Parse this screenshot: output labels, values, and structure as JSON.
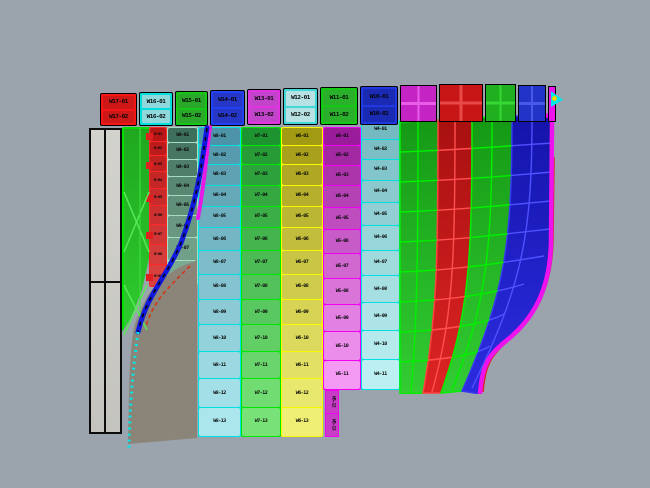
{
  "scene": {
    "type": "cad-viewport-3d-paneling-model",
    "description": "Shaded 3D viewport of a curved paneled facade surface with labeled panel strips, door frame outline, guide curves and shadow surface"
  },
  "colors": {
    "background": "#9BA3AC",
    "shadow_surface": "#8B8478",
    "door_fill": "#CBCAC5",
    "door_border": "#0C0C0C",
    "guide_curve_blue": "#1018E0",
    "guide_curve_magenta": "#E818E8",
    "guide_curve_red": "#D83010",
    "edge_stipple_cyan": "#00E8E8",
    "label_text": "#0A0A0A",
    "marker_cyan": "#00E8E8",
    "marker_yellow": "#F0D800",
    "rim_magenta": "#EE12EE"
  },
  "top_band": {
    "panels": [
      {
        "color_name": "red",
        "border": "#F51515",
        "fill": "#CE1818",
        "labels": [
          "W17-01",
          "W17-02"
        ]
      },
      {
        "color_name": "cyan",
        "border": "#00DEDE",
        "fill": "#8FD8DC",
        "labels": [
          "W16-01",
          "W16-02"
        ]
      },
      {
        "color_name": "green",
        "border": "#16C816",
        "fill": "#2AA82A",
        "labels": [
          "W15-01",
          "W15-02"
        ]
      },
      {
        "color_name": "blue",
        "border": "#2142F0",
        "fill": "#2637C8",
        "labels": [
          "W14-01",
          "W14-02"
        ]
      },
      {
        "color_name": "magenta",
        "border": "#E232E2",
        "fill": "#C244CA",
        "labels": [
          "W13-01",
          "W13-02"
        ]
      },
      {
        "color_name": "light-cyan",
        "border": "#40D8D8",
        "fill": "#B7E1E3",
        "labels": [
          "W12-01",
          "W12-02"
        ]
      },
      {
        "color_name": "green",
        "border": "#16C816",
        "fill": "#2AB02A",
        "labels": [
          "W11-01",
          "W11-02"
        ]
      },
      {
        "color_name": "navy",
        "border": "#2038E0",
        "fill": "#1B2AB2",
        "labels": [
          "W10-01",
          "W10-02"
        ]
      }
    ],
    "back_panels": [
      {
        "color_name": "magenta",
        "fill": "#C424C4",
        "line": "#E85CE8"
      },
      {
        "color_name": "red",
        "fill": "#C81616",
        "line": "#E84848"
      },
      {
        "color_name": "green",
        "fill": "#1FAF1F",
        "line": "#35D835"
      },
      {
        "color_name": "blue",
        "fill": "#2233C8",
        "line": "#4858E8"
      }
    ],
    "rim_color_name": "magenta"
  },
  "columns": [
    {
      "id": "A",
      "color_name": "green",
      "border": "#00E000",
      "fill_top": "#1FA81F",
      "fill_bottom": "#2ECC2E",
      "labels": []
    },
    {
      "id": "B",
      "color_name": "red",
      "border": "#FF2828",
      "fill_top": "#B81616",
      "fill_bottom": "#D84040",
      "labels": [
        "B-01",
        "B-02",
        "B-03",
        "B-04",
        "B-05",
        "B-06",
        "B-07",
        "B-08",
        "B-09"
      ]
    },
    {
      "id": "C",
      "color_name": "teal",
      "border": "#A6DCC2",
      "fill_top": "#3E6E5C",
      "fill_bottom": "#7AA890",
      "labels": [
        "W9-01",
        "W9-02",
        "W9-03",
        "W9-04",
        "W9-05",
        "W9-06",
        "W9-07",
        "W9-08"
      ]
    },
    {
      "id": "D",
      "color_name": "cyan",
      "border": "#00E2E2",
      "fill_top": "#4E94A8",
      "fill_bottom": "#ABE6EC",
      "labels": [
        "W8-01",
        "W8-02",
        "W8-03",
        "W8-04",
        "W8-05",
        "W8-06",
        "W8-07",
        "W8-08",
        "W8-09",
        "W8-10",
        "W8-11",
        "W8-12",
        "W8-13"
      ]
    },
    {
      "id": "E",
      "color_name": "green",
      "border": "#00E800",
      "fill_top": "#1E9430",
      "fill_bottom": "#78E278",
      "labels": [
        "W7-01",
        "W7-02",
        "W7-03",
        "W7-04",
        "W7-05",
        "W7-06",
        "W7-07",
        "W7-08",
        "W7-09",
        "W7-10",
        "W7-11",
        "W7-12",
        "W7-13"
      ]
    },
    {
      "id": "F",
      "color_name": "yellow",
      "border": "#F8F800",
      "fill_top": "#A39A14",
      "fill_bottom": "#EFEF76",
      "labels": [
        "W6-01",
        "W6-02",
        "W6-03",
        "W6-04",
        "W6-05",
        "W6-06",
        "W6-07",
        "W6-08",
        "W6-09",
        "W6-10",
        "W6-11",
        "W6-12",
        "W6-13"
      ]
    },
    {
      "id": "G",
      "color_name": "magenta",
      "border": "#F000F0",
      "fill_top": "#9A1C9A",
      "fill_bottom": "#F49AF4",
      "labels": [
        "W5-01",
        "W5-02",
        "W5-03",
        "W5-04",
        "W5-05",
        "W5-06",
        "W5-07",
        "W5-08",
        "W5-09",
        "W5-10",
        "W5-11"
      ],
      "tab_labels": [
        "W5-12",
        "W5-13"
      ]
    },
    {
      "id": "H",
      "color_name": "light-cyan",
      "border": "#00E0E0",
      "fill_top": "#74BAC0",
      "fill_bottom": "#BCEFF1",
      "labels": [
        "W4-01",
        "W4-02",
        "W4-03",
        "W4-04",
        "W4-05",
        "W4-06",
        "W4-07",
        "W4-08",
        "W4-09",
        "W4-10",
        "W4-11"
      ]
    }
  ],
  "right_section": {
    "rows": 9,
    "bands": [
      {
        "color_name": "green",
        "line": "#00F000"
      },
      {
        "color_name": "red",
        "line": "#FF5050"
      },
      {
        "color_name": "green",
        "line": "#00F000"
      },
      {
        "color_name": "blue",
        "line": "#5050FF"
      }
    ],
    "rim_color_name": "magenta"
  },
  "marker": {
    "name": "surface-orientation-marker"
  }
}
